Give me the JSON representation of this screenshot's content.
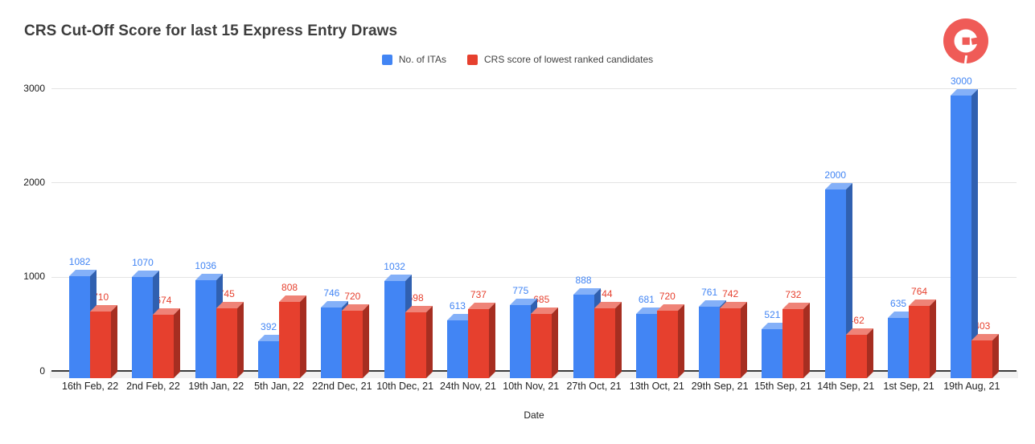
{
  "header": {
    "title": "CRS Cut-Off Score for last 15 Express Entry Draws",
    "logo": {
      "name": "brand-mark",
      "color": "#EF5B57"
    }
  },
  "axes": {
    "x_title": "Date",
    "y_ticks": [
      "0",
      "1000",
      "2000",
      "3000"
    ]
  },
  "chart_data": {
    "type": "bar",
    "effect": "3d-column",
    "title": "CRS Cut-Off Score for last 15 Express Entry Draws",
    "xlabel": "Date",
    "ylabel": "",
    "ylim": [
      0,
      3000
    ],
    "yticks": [
      0,
      1000,
      2000,
      3000
    ],
    "grid": true,
    "legend_position": "top-center",
    "background": "#ffffff",
    "gridline_color": "#e3e3e3",
    "categories": [
      "16th Feb, 22",
      "2nd Feb, 22",
      "19th Jan, 22",
      "5th Jan, 22",
      "22nd Dec, 21",
      "10th Dec, 21",
      "24th Nov, 21",
      "10th Nov, 21",
      "27th Oct, 21",
      "13th Oct, 21",
      "29th Sep, 21",
      "15th Sep, 21",
      "14th Sep, 21",
      "1st Sep, 21",
      "19th Aug, 21"
    ],
    "series": [
      {
        "name": "No. of ITAs",
        "color": "#4285F4",
        "values": [
          1082,
          1070,
          1036,
          392,
          746,
          1032,
          613,
          775,
          888,
          681,
          761,
          521,
          2000,
          635,
          3000
        ]
      },
      {
        "name": "CRS score of lowest ranked candidates",
        "color": "#E6402E",
        "values": [
          710,
          674,
          745,
          808,
          720,
          698,
          737,
          685,
          744,
          720,
          742,
          732,
          462,
          764,
          403
        ]
      }
    ]
  }
}
